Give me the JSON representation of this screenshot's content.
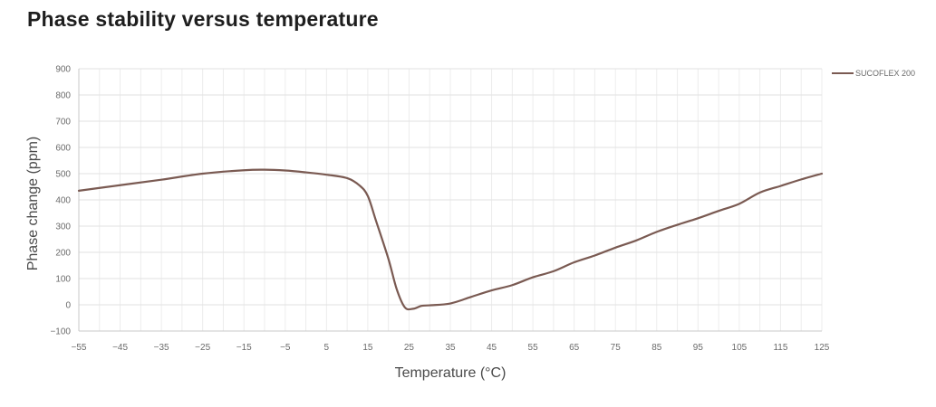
{
  "page": {
    "title": "Phase stability versus temperature"
  },
  "chart_data": {
    "type": "line",
    "title": "Phase stability versus temperature",
    "xlabel": "Temperature (°C)",
    "ylabel": "Phase change (ppm)",
    "xlim": [
      -55,
      125
    ],
    "ylim": [
      -100,
      900
    ],
    "xticks": [
      -55,
      -45,
      -35,
      -25,
      -15,
      -5,
      5,
      15,
      25,
      35,
      45,
      55,
      65,
      75,
      85,
      95,
      105,
      115,
      125
    ],
    "yticks": [
      -100,
      0,
      100,
      200,
      300,
      400,
      500,
      600,
      700,
      800,
      900
    ],
    "xtick_labels": [
      "−55",
      "−45",
      "−35",
      "−25",
      "−15",
      "−5",
      "5",
      "15",
      "25",
      "35",
      "45",
      "55",
      "65",
      "75",
      "85",
      "95",
      "105",
      "115",
      "125"
    ],
    "ytick_labels": [
      "−100",
      "0",
      "100",
      "200",
      "300",
      "400",
      "500",
      "600",
      "700",
      "800",
      "900"
    ],
    "grid": true,
    "legend_position": "right",
    "series": [
      {
        "name": "SUCOFLEX 200",
        "color": "#7a5a52",
        "x": [
          -55,
          -45,
          -35,
          -25,
          -15,
          -10,
          -5,
          0,
          5,
          10,
          13,
          15,
          17,
          20,
          22,
          24,
          26,
          28,
          30,
          35,
          40,
          45,
          50,
          55,
          60,
          65,
          70,
          75,
          80,
          85,
          90,
          95,
          100,
          105,
          110,
          115,
          120,
          125
        ],
        "y": [
          435,
          456,
          477,
          500,
          513,
          515,
          512,
          505,
          496,
          483,
          455,
          415,
          320,
          175,
          60,
          -10,
          -15,
          -4,
          -2,
          5,
          30,
          55,
          75,
          105,
          128,
          162,
          188,
          218,
          245,
          278,
          305,
          330,
          358,
          385,
          428,
          453,
          478,
          500
        ]
      }
    ]
  }
}
